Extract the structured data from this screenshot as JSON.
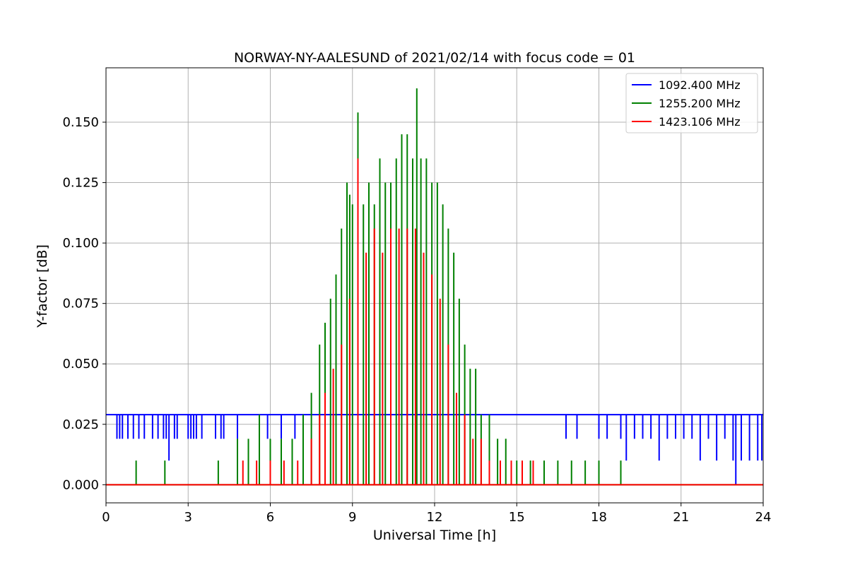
{
  "chart_data": {
    "type": "line",
    "title": "NORWAY-NY-AALESUND of 2021/02/14 with focus code = 01",
    "xlabel": "Universal Time [h]",
    "ylabel": "Y-factor [dB]",
    "xlim": [
      0,
      24
    ],
    "ylim": [
      -0.0075,
      0.1725
    ],
    "xticks": [
      0,
      3,
      6,
      9,
      12,
      15,
      18,
      21,
      24
    ],
    "xtick_labels": [
      "0",
      "3",
      "6",
      "9",
      "12",
      "15",
      "18",
      "21",
      "24"
    ],
    "yticks": [
      0.0,
      0.025,
      0.05,
      0.075,
      0.1,
      0.125,
      0.15
    ],
    "ytick_labels": [
      "0.000",
      "0.025",
      "0.050",
      "0.075",
      "0.100",
      "0.125",
      "0.150"
    ],
    "grid": true,
    "legend_position": "top-right",
    "series": [
      {
        "name": "1092.400 MHz",
        "color": "#0000ff",
        "baseline": 0.029,
        "x": [
          0.4,
          0.5,
          0.6,
          0.8,
          1.0,
          1.2,
          1.4,
          1.7,
          1.9,
          2.1,
          2.2,
          2.3,
          2.5,
          2.6,
          3.0,
          3.1,
          3.2,
          3.3,
          3.5,
          4.0,
          4.2,
          4.3,
          4.8,
          5.9,
          6.4,
          6.9,
          16.8,
          17.2,
          18.0,
          18.3,
          18.8,
          19.0,
          19.3,
          19.6,
          19.9,
          20.2,
          20.5,
          20.8,
          21.1,
          21.4,
          21.7,
          22.0,
          22.3,
          22.6,
          22.9,
          23.0,
          23.2,
          23.5,
          23.8,
          23.95
        ],
        "y": [
          0.019,
          0.019,
          0.019,
          0.019,
          0.019,
          0.019,
          0.019,
          0.019,
          0.019,
          0.019,
          0.019,
          0.01,
          0.019,
          0.019,
          0.019,
          0.019,
          0.019,
          0.019,
          0.019,
          0.019,
          0.019,
          0.019,
          0.019,
          0.019,
          0.019,
          0.019,
          0.019,
          0.019,
          0.019,
          0.019,
          0.019,
          0.01,
          0.019,
          0.019,
          0.019,
          0.01,
          0.019,
          0.019,
          0.019,
          0.019,
          0.01,
          0.019,
          0.01,
          0.019,
          0.01,
          0.0,
          0.01,
          0.01,
          0.01,
          0.01
        ]
      },
      {
        "name": "1255.200 MHz",
        "color": "#008000",
        "x": [
          1.1,
          2.15,
          4.1,
          4.8,
          5.2,
          5.6,
          6.0,
          6.4,
          6.8,
          7.2,
          7.5,
          7.8,
          8.0,
          8.2,
          8.4,
          8.6,
          8.8,
          8.9,
          9.0,
          9.2,
          9.4,
          9.6,
          9.8,
          10.0,
          10.2,
          10.4,
          10.6,
          10.8,
          11.0,
          11.2,
          11.35,
          11.5,
          11.7,
          11.9,
          12.1,
          12.3,
          12.5,
          12.7,
          12.9,
          13.1,
          13.3,
          13.5,
          13.7,
          14.0,
          14.3,
          14.6,
          15.0,
          15.5,
          16.0,
          16.5,
          17.0,
          17.5,
          18.0,
          18.8
        ],
        "y": [
          0.01,
          0.01,
          0.01,
          0.019,
          0.019,
          0.029,
          0.019,
          0.019,
          0.019,
          0.029,
          0.038,
          0.058,
          0.067,
          0.077,
          0.087,
          0.106,
          0.125,
          0.12,
          0.116,
          0.154,
          0.116,
          0.125,
          0.116,
          0.135,
          0.125,
          0.125,
          0.135,
          0.145,
          0.145,
          0.135,
          0.164,
          0.135,
          0.135,
          0.125,
          0.125,
          0.116,
          0.106,
          0.096,
          0.077,
          0.058,
          0.048,
          0.048,
          0.029,
          0.029,
          0.019,
          0.019,
          0.01,
          0.01,
          0.01,
          0.01,
          0.01,
          0.01,
          0.01,
          0.01
        ]
      },
      {
        "name": "1423.106 MHz",
        "color": "#ff0000",
        "x": [
          5.0,
          5.5,
          6.0,
          6.5,
          7.0,
          7.5,
          7.8,
          8.0,
          8.3,
          8.6,
          8.9,
          9.2,
          9.5,
          9.8,
          10.1,
          10.4,
          10.7,
          11.0,
          11.3,
          11.6,
          11.9,
          12.2,
          12.5,
          12.8,
          13.1,
          13.4,
          13.7,
          14.0,
          14.4,
          14.8,
          15.2,
          15.6
        ],
        "y": [
          0.01,
          0.01,
          0.01,
          0.01,
          0.01,
          0.019,
          0.029,
          0.038,
          0.048,
          0.058,
          0.077,
          0.135,
          0.096,
          0.106,
          0.096,
          0.106,
          0.106,
          0.106,
          0.106,
          0.096,
          0.087,
          0.077,
          0.058,
          0.038,
          0.029,
          0.019,
          0.019,
          0.01,
          0.01,
          0.01,
          0.01,
          0.01
        ]
      }
    ]
  }
}
